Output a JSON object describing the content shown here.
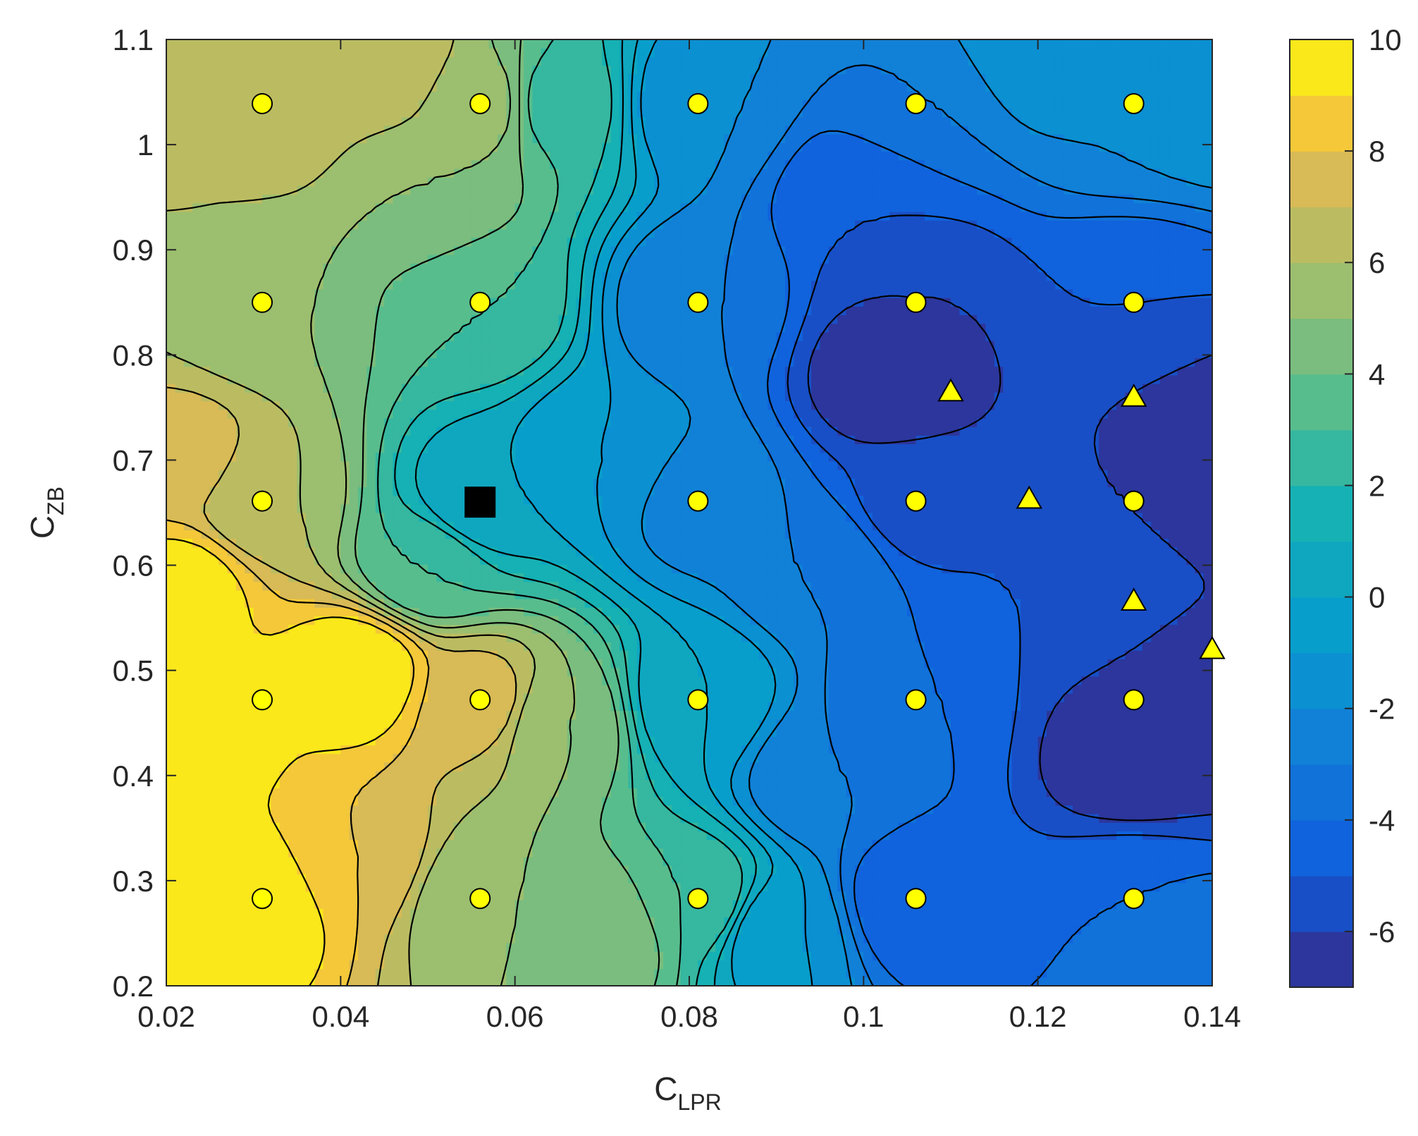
{
  "chart_data": {
    "type": "heatmap",
    "subtype": "filled-contour",
    "xlabel": "C",
    "xlabel_sub": "LPR",
    "ylabel": "C",
    "ylabel_sub": "ZB",
    "xlim": [
      0.02,
      0.14
    ],
    "ylim": [
      0.2,
      1.1
    ],
    "xticks": [
      0.02,
      0.04,
      0.06,
      0.08,
      0.1,
      0.12,
      0.14
    ],
    "xtick_labels": [
      "0.02",
      "0.04",
      "0.06",
      "0.08",
      "0.1",
      "0.12",
      "0.14"
    ],
    "yticks": [
      0.2,
      0.3,
      0.4,
      0.5,
      0.6,
      0.7,
      0.8,
      0.9,
      1.0,
      1.1
    ],
    "ytick_labels": [
      "0.2",
      "0.3",
      "0.4",
      "0.5",
      "0.6",
      "0.7",
      "0.8",
      "0.9",
      "1",
      "1.1"
    ],
    "colorbar": {
      "range": [
        -7,
        10
      ],
      "ticks": [
        10,
        8,
        6,
        4,
        2,
        0,
        -2,
        -4,
        -6
      ],
      "tick_labels": [
        "10",
        "8",
        "6",
        "4",
        "2",
        "0",
        "-2",
        "-4",
        "-6"
      ],
      "colormap": "parula"
    },
    "grid": false,
    "legend": "none",
    "contour_levels": [
      -7,
      -6,
      -5,
      -4,
      -3,
      -2,
      -1,
      0,
      1,
      2,
      3,
      4,
      5,
      6,
      7,
      8,
      9,
      10
    ],
    "colors": {
      "marker_fill": "#ffff00",
      "marker_edge": "#000000",
      "contour_line": "#000000",
      "optimum_marker": "#000000"
    },
    "grid_points": {
      "marker": "circle",
      "x": [
        0.031,
        0.056,
        0.081,
        0.106,
        0.131
      ],
      "y": [
        0.283,
        0.472,
        0.661,
        0.85,
        1.039
      ]
    },
    "triangle_points": [
      {
        "x": 0.11,
        "y": 0.765
      },
      {
        "x": 0.131,
        "y": 0.76
      },
      {
        "x": 0.119,
        "y": 0.663
      },
      {
        "x": 0.131,
        "y": 0.566
      },
      {
        "x": 0.14,
        "y": 0.52
      }
    ],
    "square_point": {
      "x": 0.056,
      "y": 0.66
    },
    "surface_anchors": [
      {
        "x": 0.022,
        "y": 0.45,
        "v": 10
      },
      {
        "x": 0.03,
        "y": 0.28,
        "v": 10
      },
      {
        "x": 0.022,
        "y": 0.58,
        "v": 9.5
      },
      {
        "x": 0.022,
        "y": 0.7,
        "v": 7.5
      },
      {
        "x": 0.022,
        "y": 0.9,
        "v": 6
      },
      {
        "x": 0.022,
        "y": 1.05,
        "v": 6.5
      },
      {
        "x": 0.031,
        "y": 1.04,
        "v": 7
      },
      {
        "x": 0.045,
        "y": 1.08,
        "v": 7
      },
      {
        "x": 0.05,
        "y": 0.95,
        "v": 5
      },
      {
        "x": 0.031,
        "y": 0.85,
        "v": 5
      },
      {
        "x": 0.031,
        "y": 0.66,
        "v": 6
      },
      {
        "x": 0.042,
        "y": 0.5,
        "v": 10
      },
      {
        "x": 0.042,
        "y": 0.32,
        "v": 8
      },
      {
        "x": 0.056,
        "y": 0.47,
        "v": 7.5
      },
      {
        "x": 0.056,
        "y": 0.28,
        "v": 5
      },
      {
        "x": 0.07,
        "y": 0.25,
        "v": 5
      },
      {
        "x": 0.081,
        "y": 0.28,
        "v": 3
      },
      {
        "x": 0.065,
        "y": 0.45,
        "v": 5
      },
      {
        "x": 0.081,
        "y": 0.47,
        "v": 0
      },
      {
        "x": 0.05,
        "y": 0.6,
        "v": 3
      },
      {
        "x": 0.056,
        "y": 0.66,
        "v": 0
      },
      {
        "x": 0.056,
        "y": 0.85,
        "v": 3
      },
      {
        "x": 0.056,
        "y": 1.04,
        "v": 5.5
      },
      {
        "x": 0.065,
        "y": 1.04,
        "v": 2.5
      },
      {
        "x": 0.07,
        "y": 0.7,
        "v": -1
      },
      {
        "x": 0.081,
        "y": 0.66,
        "v": -2.5
      },
      {
        "x": 0.081,
        "y": 0.85,
        "v": -3
      },
      {
        "x": 0.081,
        "y": 1.04,
        "v": -2
      },
      {
        "x": 0.095,
        "y": 0.6,
        "v": -3
      },
      {
        "x": 0.106,
        "y": 0.47,
        "v": -4
      },
      {
        "x": 0.106,
        "y": 0.28,
        "v": -5
      },
      {
        "x": 0.1,
        "y": 0.95,
        "v": -5
      },
      {
        "x": 0.103,
        "y": 0.78,
        "v": -7
      },
      {
        "x": 0.106,
        "y": 0.85,
        "v": -6
      },
      {
        "x": 0.106,
        "y": 0.66,
        "v": -5.5
      },
      {
        "x": 0.106,
        "y": 1.04,
        "v": -3
      },
      {
        "x": 0.12,
        "y": 1.1,
        "v": -1
      },
      {
        "x": 0.131,
        "y": 1.04,
        "v": -2
      },
      {
        "x": 0.131,
        "y": 0.85,
        "v": -5
      },
      {
        "x": 0.14,
        "y": 0.72,
        "v": -7
      },
      {
        "x": 0.131,
        "y": 0.66,
        "v": -6
      },
      {
        "x": 0.12,
        "y": 0.58,
        "v": -5
      },
      {
        "x": 0.14,
        "y": 0.45,
        "v": -6.5
      },
      {
        "x": 0.131,
        "y": 0.42,
        "v": -7
      },
      {
        "x": 0.131,
        "y": 0.47,
        "v": -6
      },
      {
        "x": 0.131,
        "y": 0.28,
        "v": -4
      },
      {
        "x": 0.14,
        "y": 0.22,
        "v": -3
      },
      {
        "x": 0.14,
        "y": 1.05,
        "v": -1
      },
      {
        "x": 0.09,
        "y": 0.25,
        "v": -1
      },
      {
        "x": 0.095,
        "y": 0.4,
        "v": -3
      }
    ]
  }
}
